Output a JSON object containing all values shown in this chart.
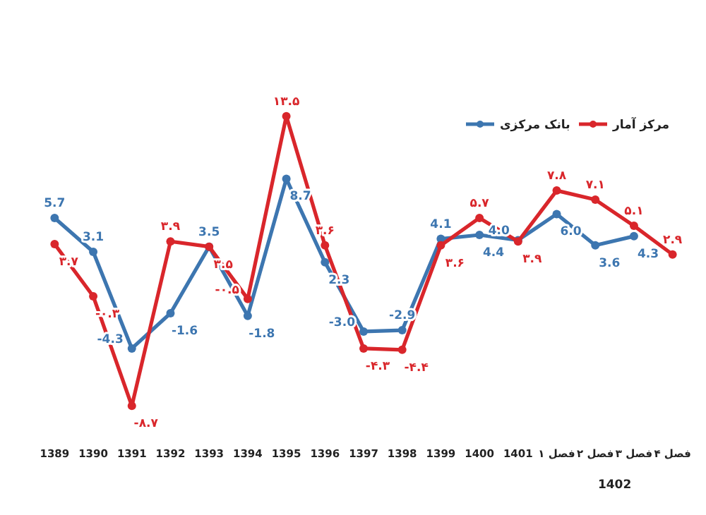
{
  "chart_data": {
    "type": "line",
    "categories": [
      "1389",
      "1390",
      "1391",
      "1392",
      "1393",
      "1394",
      "1395",
      "1396",
      "1397",
      "1398",
      "1399",
      "1400",
      "1401",
      "فصل ۱",
      "فصل ۲",
      "فصل ۳",
      "فصل ۴"
    ],
    "series": [
      {
        "name": "بانک مرکزی",
        "color": "#3d76b0",
        "values": [
          5.7,
          3.1,
          -4.3,
          -1.6,
          3.5,
          -1.8,
          8.7,
          2.3,
          -3.0,
          -2.9,
          4.1,
          4.4,
          4.0,
          6.0,
          3.6,
          4.3,
          null
        ],
        "value_labels": [
          "5.7",
          "3.1",
          "-4.3",
          "-1.6",
          "3.5",
          "-1.8",
          "8.7",
          "2.3",
          "-3.0",
          "-2.9",
          "4.1",
          "4.4",
          "4.0",
          "6.0",
          "3.6",
          "4.3",
          null
        ]
      },
      {
        "name": "مرکز آمار",
        "color": "#d9262b",
        "values": [
          3.7,
          -0.3,
          -8.7,
          3.9,
          3.5,
          -0.5,
          13.5,
          3.6,
          -4.3,
          -4.4,
          3.6,
          5.7,
          3.9,
          7.8,
          7.1,
          5.1,
          2.9
        ],
        "value_labels": [
          "۳.۷",
          "-۰.۳",
          "-۸.۷",
          "۳.۹",
          "۳.۵",
          "-۰.۵",
          "۱۳.۵",
          "۳.۶",
          "-۴.۳",
          "-۴.۴",
          "۳.۶",
          "۵.۷",
          "۳.۹",
          "۷.۸",
          "۷.۱",
          "۵.۱",
          "۲.۹"
        ]
      }
    ],
    "annotations": [
      "1402"
    ],
    "marker": "circle",
    "legend": "top right"
  }
}
